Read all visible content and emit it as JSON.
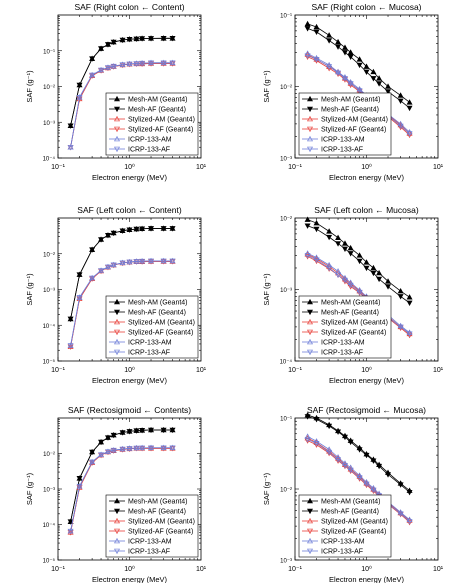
{
  "figure": {
    "panels_label": "SAF panels"
  },
  "legend": {
    "entries": [
      {
        "label": "Mesh-AM (Geant4)",
        "color": "#000000",
        "marker": "tri-up-filled"
      },
      {
        "label": "Mesh-AF (Geant4)",
        "color": "#000000",
        "marker": "tri-down-filled"
      },
      {
        "label": "Stylized-AM (Geant4)",
        "color": "#e8403a",
        "marker": "tri-up-open"
      },
      {
        "label": "Stylized-AF (Geant4)",
        "color": "#e8403a",
        "marker": "tri-down-open"
      },
      {
        "label": "ICRP-133-AM",
        "color": "#6f7fd8",
        "marker": "tri-up-open"
      },
      {
        "label": "ICRP-133-AF",
        "color": "#6f7fd8",
        "marker": "tri-down-open"
      }
    ]
  },
  "chart_data": [
    {
      "type": "line",
      "title": "SAF (Right colon ← Content)",
      "xlabel": "Electron energy (MeV)",
      "ylabel": "SAF (g⁻¹)",
      "x_scale": "log",
      "y_scale": "log",
      "xlim": [
        0.1,
        10
      ],
      "ylim": [
        0.0001,
        1
      ],
      "x_ticks": [
        "10⁻¹",
        "10⁰",
        "10¹"
      ],
      "y_ticks": [
        "10⁻⁴",
        "10⁻³",
        "10⁻²",
        "10⁻¹"
      ],
      "legend_position": "bottom-right",
      "x": [
        0.15,
        0.2,
        0.3,
        0.4,
        0.5,
        0.6,
        0.8,
        1,
        1.25,
        1.5,
        2,
        3,
        4
      ],
      "series": [
        {
          "name": "Mesh-AM (Geant4)",
          "values": [
            0.0008,
            0.011,
            0.06,
            0.115,
            0.15,
            0.175,
            0.2,
            0.21,
            0.215,
            0.22,
            0.222,
            0.223,
            0.223
          ]
        },
        {
          "name": "Mesh-AF (Geant4)",
          "values": [
            0.0008,
            0.011,
            0.06,
            0.115,
            0.15,
            0.175,
            0.2,
            0.21,
            0.215,
            0.22,
            0.222,
            0.223,
            0.223
          ]
        },
        {
          "name": "Stylized-AM (Geant4)",
          "values": [
            0.0002,
            0.0045,
            0.02,
            0.028,
            0.033,
            0.036,
            0.04,
            0.042,
            0.043,
            0.043,
            0.044,
            0.044,
            0.044
          ]
        },
        {
          "name": "Stylized-AF (Geant4)",
          "values": [
            0.0002,
            0.0045,
            0.02,
            0.028,
            0.033,
            0.036,
            0.04,
            0.042,
            0.043,
            0.043,
            0.044,
            0.044,
            0.044
          ]
        },
        {
          "name": "ICRP-133-AM",
          "values": [
            0.0002,
            0.005,
            0.021,
            0.029,
            0.034,
            0.037,
            0.041,
            0.043,
            0.044,
            0.045,
            0.046,
            0.046,
            0.046
          ]
        },
        {
          "name": "ICRP-133-AF",
          "values": [
            0.0002,
            0.005,
            0.021,
            0.029,
            0.034,
            0.037,
            0.041,
            0.043,
            0.044,
            0.045,
            0.046,
            0.046,
            0.046
          ]
        }
      ]
    },
    {
      "type": "line",
      "title": "SAF (Right colon ← Mucosa)",
      "xlabel": "Electron energy (MeV)",
      "ylabel": "SAF (g⁻¹)",
      "x_scale": "log",
      "y_scale": "log",
      "xlim": [
        0.1,
        10
      ],
      "ylim": [
        0.001,
        0.1
      ],
      "x_ticks": [
        "10⁻¹",
        "10⁰",
        "10¹"
      ],
      "y_ticks": [
        "10⁻³",
        "10⁻²",
        "10⁻¹"
      ],
      "legend_position": "bottom-left",
      "x": [
        0.15,
        0.2,
        0.3,
        0.4,
        0.5,
        0.6,
        0.8,
        1,
        1.25,
        1.5,
        2,
        3,
        4
      ],
      "series": [
        {
          "name": "Mesh-AM (Geant4)",
          "values": [
            0.075,
            0.068,
            0.052,
            0.042,
            0.035,
            0.03,
            0.024,
            0.019,
            0.016,
            0.013,
            0.01,
            0.0075,
            0.006
          ]
        },
        {
          "name": "Mesh-AF (Geant4)",
          "values": [
            0.065,
            0.058,
            0.044,
            0.036,
            0.03,
            0.026,
            0.02,
            0.016,
            0.013,
            0.011,
            0.0085,
            0.0063,
            0.005
          ]
        },
        {
          "name": "Stylized-AM (Geant4)",
          "values": [
            0.028,
            0.024,
            0.019,
            0.016,
            0.013,
            0.011,
            0.0089,
            0.0073,
            0.006,
            0.0051,
            0.004,
            0.0029,
            0.0022
          ]
        },
        {
          "name": "Stylized-AF (Geant4)",
          "values": [
            0.026,
            0.023,
            0.018,
            0.015,
            0.0125,
            0.0105,
            0.0085,
            0.0069,
            0.0057,
            0.0048,
            0.0038,
            0.0027,
            0.0021
          ]
        },
        {
          "name": "ICRP-133-AM",
          "values": [
            0.029,
            0.025,
            0.02,
            0.016,
            0.0135,
            0.0115,
            0.0092,
            0.0075,
            0.0062,
            0.0052,
            0.0041,
            0.003,
            0.0023
          ]
        },
        {
          "name": "ICRP-133-AF",
          "values": [
            0.027,
            0.024,
            0.019,
            0.0155,
            0.013,
            0.011,
            0.0088,
            0.0071,
            0.0059,
            0.005,
            0.0039,
            0.0028,
            0.0022
          ]
        }
      ]
    },
    {
      "type": "line",
      "title": "SAF (Left colon ← Content)",
      "xlabel": "Electron energy (MeV)",
      "ylabel": "SAF (g⁻¹)",
      "x_scale": "log",
      "y_scale": "log",
      "xlim": [
        0.1,
        10
      ],
      "ylim": [
        1e-05,
        0.1
      ],
      "x_ticks": [
        "10⁻¹",
        "10⁰",
        "10¹"
      ],
      "y_ticks": [
        "10⁻⁵",
        "10⁻⁴",
        "10⁻³",
        "10⁻²"
      ],
      "legend_position": "bottom-right",
      "x": [
        0.15,
        0.2,
        0.3,
        0.4,
        0.5,
        0.6,
        0.8,
        1,
        1.25,
        1.5,
        2,
        3,
        4
      ],
      "series": [
        {
          "name": "Mesh-AM (Geant4)",
          "values": [
            0.00015,
            0.0026,
            0.013,
            0.025,
            0.033,
            0.038,
            0.044,
            0.047,
            0.049,
            0.05,
            0.051,
            0.051,
            0.051
          ]
        },
        {
          "name": "Mesh-AF (Geant4)",
          "values": [
            0.00015,
            0.0026,
            0.013,
            0.025,
            0.033,
            0.038,
            0.044,
            0.047,
            0.049,
            0.05,
            0.051,
            0.051,
            0.051
          ]
        },
        {
          "name": "Stylized-AM (Geant4)",
          "values": [
            2.5e-05,
            0.00055,
            0.002,
            0.0033,
            0.0042,
            0.0048,
            0.0055,
            0.0058,
            0.006,
            0.006,
            0.0061,
            0.0061,
            0.0061
          ]
        },
        {
          "name": "Stylized-AF (Geant4)",
          "values": [
            2.5e-05,
            0.00055,
            0.002,
            0.0033,
            0.0042,
            0.0048,
            0.0055,
            0.0058,
            0.006,
            0.006,
            0.0061,
            0.0061,
            0.0061
          ]
        },
        {
          "name": "ICRP-133-AM",
          "values": [
            2.7e-05,
            0.0006,
            0.0021,
            0.0034,
            0.0043,
            0.0049,
            0.0056,
            0.0059,
            0.0061,
            0.0062,
            0.0063,
            0.0063,
            0.0063
          ]
        },
        {
          "name": "ICRP-133-AF",
          "values": [
            2.7e-05,
            0.0006,
            0.0021,
            0.0034,
            0.0043,
            0.0049,
            0.0056,
            0.0059,
            0.0061,
            0.0062,
            0.0063,
            0.0063,
            0.0063
          ]
        }
      ]
    },
    {
      "type": "line",
      "title": "SAF (Left colon ← Mucosa)",
      "xlabel": "Electron energy (MeV)",
      "ylabel": "SAF (g⁻¹)",
      "x_scale": "log",
      "y_scale": "log",
      "xlim": [
        0.1,
        10
      ],
      "ylim": [
        0.0001,
        0.01
      ],
      "x_ticks": [
        "10⁻¹",
        "10⁰",
        "10¹"
      ],
      "y_ticks": [
        "10⁻⁴",
        "10⁻³",
        "10⁻²"
      ],
      "legend_position": "bottom-left",
      "x": [
        0.15,
        0.2,
        0.3,
        0.4,
        0.5,
        0.6,
        0.8,
        1,
        1.25,
        1.5,
        2,
        3,
        4
      ],
      "series": [
        {
          "name": "Mesh-AM (Geant4)",
          "values": [
            0.0095,
            0.0085,
            0.0065,
            0.0053,
            0.0044,
            0.0038,
            0.003,
            0.0024,
            0.002,
            0.0017,
            0.0013,
            0.00095,
            0.00078
          ]
        },
        {
          "name": "Mesh-AF (Geant4)",
          "values": [
            0.0078,
            0.007,
            0.0054,
            0.0044,
            0.0037,
            0.0032,
            0.0025,
            0.002,
            0.0017,
            0.0014,
            0.0011,
            0.0008,
            0.00065
          ]
        },
        {
          "name": "Stylized-AM (Geant4)",
          "values": [
            0.0031,
            0.0027,
            0.0021,
            0.0017,
            0.0014,
            0.0012,
            0.00095,
            0.00078,
            0.00064,
            0.00054,
            0.00042,
            0.0003,
            0.00024
          ]
        },
        {
          "name": "Stylized-AF (Geant4)",
          "values": [
            0.0029,
            0.0025,
            0.00195,
            0.0016,
            0.0013,
            0.0011,
            0.0009,
            0.00073,
            0.0006,
            0.0005,
            0.0004,
            0.00029,
            0.00023
          ]
        },
        {
          "name": "ICRP-133-AM",
          "values": [
            0.0032,
            0.0028,
            0.0022,
            0.0018,
            0.00145,
            0.00125,
            0.00098,
            0.0008,
            0.00066,
            0.00056,
            0.00044,
            0.00031,
            0.00025
          ]
        },
        {
          "name": "ICRP-133-AF",
          "values": [
            0.003,
            0.0026,
            0.002,
            0.0016,
            0.00135,
            0.00115,
            0.00092,
            0.00075,
            0.00062,
            0.00052,
            0.00041,
            0.0003,
            0.00024
          ]
        }
      ]
    },
    {
      "type": "line",
      "title": "SAF (Rectosigmoid ← Contents)",
      "xlabel": "Electron energy (MeV)",
      "ylabel": "SAF (g⁻¹)",
      "x_scale": "log",
      "y_scale": "log",
      "xlim": [
        0.1,
        10
      ],
      "ylim": [
        1e-05,
        0.1
      ],
      "x_ticks": [
        "10⁻¹",
        "10⁰",
        "10¹"
      ],
      "y_ticks": [
        "10⁻⁵",
        "10⁻⁴",
        "10⁻³",
        "10⁻²"
      ],
      "legend_position": "bottom-right",
      "x": [
        0.15,
        0.2,
        0.3,
        0.4,
        0.5,
        0.6,
        0.8,
        1,
        1.25,
        1.5,
        2,
        3,
        4
      ],
      "series": [
        {
          "name": "Mesh-AM (Geant4)",
          "values": [
            0.00012,
            0.002,
            0.011,
            0.021,
            0.028,
            0.033,
            0.039,
            0.042,
            0.044,
            0.045,
            0.046,
            0.046,
            0.046
          ]
        },
        {
          "name": "Mesh-AF (Geant4)",
          "values": [
            0.00012,
            0.002,
            0.011,
            0.021,
            0.028,
            0.033,
            0.039,
            0.042,
            0.044,
            0.045,
            0.046,
            0.046,
            0.046
          ]
        },
        {
          "name": "Stylized-AM (Geant4)",
          "values": [
            6e-05,
            0.0011,
            0.0055,
            0.009,
            0.011,
            0.012,
            0.013,
            0.0135,
            0.014,
            0.014,
            0.014,
            0.014,
            0.014
          ]
        },
        {
          "name": "Stylized-AF (Geant4)",
          "values": [
            6e-05,
            0.0011,
            0.0055,
            0.009,
            0.011,
            0.012,
            0.013,
            0.0135,
            0.014,
            0.014,
            0.014,
            0.014,
            0.014
          ]
        },
        {
          "name": "ICRP-133-AM",
          "values": [
            6.5e-05,
            0.0012,
            0.0058,
            0.0093,
            0.0113,
            0.0124,
            0.0134,
            0.0139,
            0.0143,
            0.0144,
            0.0145,
            0.0145,
            0.0145
          ]
        },
        {
          "name": "ICRP-133-AF",
          "values": [
            6.5e-05,
            0.0012,
            0.0058,
            0.0093,
            0.0113,
            0.0124,
            0.0134,
            0.0139,
            0.0143,
            0.0144,
            0.0145,
            0.0145,
            0.0145
          ]
        }
      ]
    },
    {
      "type": "line",
      "title": "SAF (Rectosigmoid ← Mucosa)",
      "xlabel": "Electron energy (MeV)",
      "ylabel": "SAF (g⁻¹)",
      "x_scale": "log",
      "y_scale": "log",
      "xlim": [
        0.1,
        10
      ],
      "ylim": [
        0.001,
        0.1
      ],
      "x_ticks": [
        "10⁻¹",
        "10⁰",
        "10¹"
      ],
      "y_ticks": [
        "10⁻³",
        "10⁻²",
        "10⁻¹"
      ],
      "legend_position": "bottom-left",
      "x": [
        0.15,
        0.2,
        0.3,
        0.4,
        0.5,
        0.6,
        0.8,
        1,
        1.25,
        1.5,
        2,
        3,
        4
      ],
      "series": [
        {
          "name": "Mesh-AM (Geant4)",
          "values": [
            0.11,
            0.1,
            0.08,
            0.066,
            0.056,
            0.048,
            0.038,
            0.031,
            0.026,
            0.022,
            0.017,
            0.012,
            0.0095
          ]
        },
        {
          "name": "Mesh-AF (Geant4)",
          "values": [
            0.105,
            0.096,
            0.077,
            0.064,
            0.054,
            0.046,
            0.036,
            0.03,
            0.025,
            0.021,
            0.016,
            0.0115,
            0.009
          ]
        },
        {
          "name": "Stylized-AM (Geant4)",
          "values": [
            0.052,
            0.045,
            0.034,
            0.027,
            0.022,
            0.019,
            0.015,
            0.012,
            0.0099,
            0.0083,
            0.0064,
            0.0046,
            0.0036
          ]
        },
        {
          "name": "Stylized-AF (Geant4)",
          "values": [
            0.048,
            0.042,
            0.032,
            0.025,
            0.021,
            0.018,
            0.014,
            0.0114,
            0.0094,
            0.0079,
            0.0061,
            0.0044,
            0.0034
          ]
        },
        {
          "name": "ICRP-133-AM",
          "values": [
            0.055,
            0.047,
            0.036,
            0.028,
            0.023,
            0.02,
            0.0155,
            0.0125,
            0.0103,
            0.0086,
            0.0066,
            0.0047,
            0.0037
          ]
        },
        {
          "name": "ICRP-133-AF",
          "values": [
            0.05,
            0.044,
            0.033,
            0.026,
            0.0215,
            0.0185,
            0.0145,
            0.0118,
            0.0097,
            0.0081,
            0.0062,
            0.0045,
            0.0035
          ]
        }
      ]
    }
  ]
}
